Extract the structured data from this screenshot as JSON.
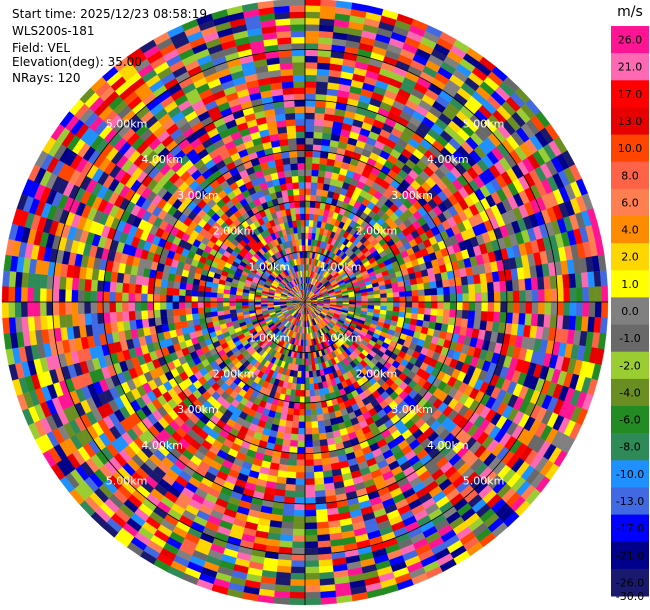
{
  "header": {
    "start_time": "Start time: 2025/12/23 08:58:19",
    "instrument": "WLS200s-181",
    "field": "Field: VEL",
    "elevation": "Elevation(deg): 35.00",
    "nrays": "NRays: 120"
  },
  "chart_data": {
    "type": "heatmap",
    "projection": "polar-ppi",
    "field": "VEL",
    "elevation_deg": 35.0,
    "n_rays": 120,
    "range_rings_km": [
      1.0,
      2.0,
      3.0,
      4.0,
      5.0
    ],
    "ring_labels": [
      "1.00km",
      "2.00km",
      "3.00km",
      "4.00km",
      "5.00km"
    ],
    "max_range_km": 6.0,
    "colorbar": {
      "unit": "m/s",
      "ticks": [
        "26.0",
        "21.0",
        "17.0",
        "13.0",
        "10.0",
        "8.0",
        "6.0",
        "4.0",
        "2.0",
        "1.0",
        "0.0",
        "-1.0",
        "-2.0",
        "-4.0",
        "-6.0",
        "-8.0",
        "-10.0",
        "-13.0",
        "-17.0",
        "-21.0",
        "-26.0",
        "-30.0"
      ],
      "colors": [
        "#ff1493",
        "#ff69b4",
        "#ff0000",
        "#e60000",
        "#ff4500",
        "#ff6347",
        "#ff7f50",
        "#ff8c00",
        "#ffd700",
        "#ffff00",
        "#808080",
        "#696969",
        "#9acd32",
        "#6b8e23",
        "#228b22",
        "#2e8b57",
        "#1e90ff",
        "#4169e1",
        "#0000ff",
        "#00008b",
        "#191970"
      ]
    }
  }
}
